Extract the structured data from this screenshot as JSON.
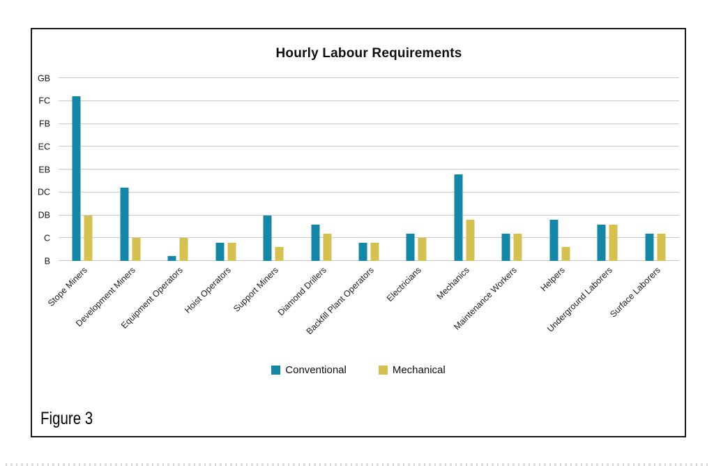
{
  "caption": "Figure 3",
  "chart_data": {
    "type": "bar",
    "title": "Hourly Labour Requirements",
    "categories": [
      "Stope Miners",
      "Development Miners",
      "Equipment Operators",
      "Hoist Operators",
      "Support Miners",
      "Diamond Drillers",
      "Backfill Plant Operators",
      "Electricians",
      "Mechanics",
      "Maintenance Workers",
      "Helpers",
      "Underground Laborers",
      "Surface Laborers"
    ],
    "y_ticks_bottom_to_top": [
      "B",
      "C",
      "DB",
      "DC",
      "EB",
      "EC",
      "FB",
      "FC",
      "GB"
    ],
    "y_axis_note": "tick labels as rendered; values below expressed in tick units where B=0 and each successive gridline = +1",
    "ymax": 8,
    "grid": "horizontal",
    "legend_position": "bottom-center",
    "series": [
      {
        "name": "Conventional",
        "color": "#1487a7",
        "values": [
          7.2,
          3.2,
          0.2,
          0.8,
          2.0,
          1.6,
          0.8,
          1.2,
          3.8,
          1.2,
          1.8,
          1.6,
          1.2
        ]
      },
      {
        "name": "Mechanical",
        "color": "#d4c14f",
        "values": [
          2.0,
          1.0,
          1.0,
          0.8,
          0.6,
          1.2,
          0.8,
          1.0,
          1.8,
          1.2,
          0.6,
          1.6,
          1.2
        ]
      }
    ]
  }
}
